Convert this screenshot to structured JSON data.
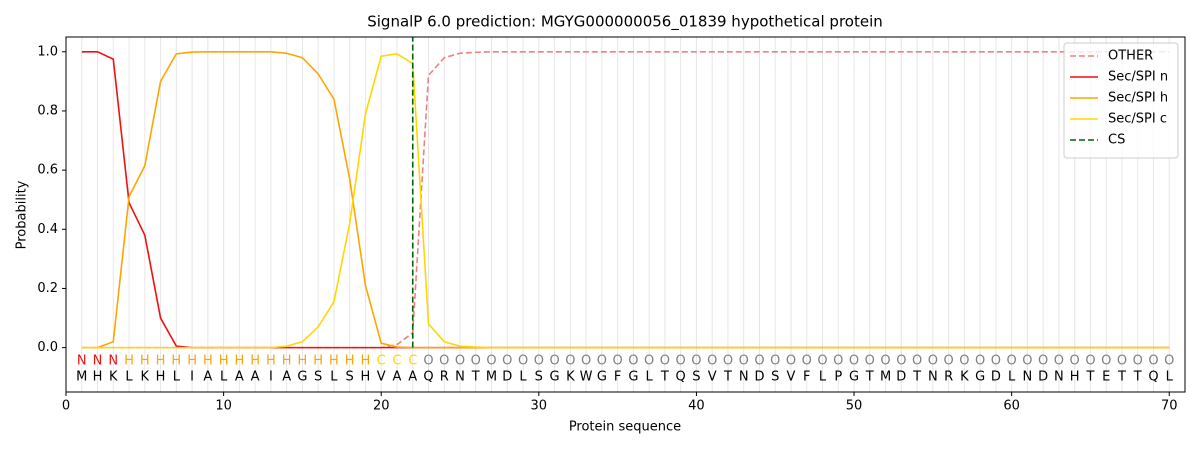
{
  "chart_data": {
    "type": "line",
    "title": "SignalP 6.0 prediction: MGYG000000056_01839 hypothetical protein",
    "x_label": "Protein sequence",
    "y_label": "Probability",
    "xlim": [
      0,
      71
    ],
    "ylim": [
      -0.15,
      1.05
    ],
    "xticks": [
      0,
      10,
      20,
      30,
      40,
      50,
      60,
      70
    ],
    "yticks": [
      {
        "value": 0,
        "label": "0.0"
      },
      {
        "value": 0.2,
        "label": "0.2"
      },
      {
        "value": 0.4,
        "label": "0.4"
      },
      {
        "value": 0.6,
        "label": "0.6"
      },
      {
        "value": 0.8,
        "label": "0.8"
      },
      {
        "value": 1,
        "label": "1.0"
      }
    ],
    "legend": "upper right",
    "x": [
      1,
      2,
      3,
      4,
      5,
      6,
      7,
      8,
      9,
      10,
      11,
      12,
      13,
      14,
      15,
      16,
      17,
      18,
      19,
      20,
      21,
      22,
      23,
      24,
      25,
      26,
      27,
      28,
      29,
      30,
      31,
      32,
      33,
      34,
      35,
      36,
      37,
      38,
      39,
      40,
      41,
      42,
      43,
      44,
      45,
      46,
      47,
      48,
      49,
      50,
      51,
      52,
      53,
      54,
      55,
      56,
      57,
      58,
      59,
      60,
      61,
      62,
      63,
      64,
      65,
      66,
      67,
      68,
      69,
      70
    ],
    "series": [
      {
        "name": "OTHER",
        "color": "#f08080",
        "dash": true,
        "values": [
          0,
          0,
          0,
          0,
          0,
          0,
          0,
          0,
          0,
          0,
          0,
          0,
          0,
          0,
          0,
          0,
          0,
          0,
          0,
          0,
          0.01,
          0.05,
          0.92,
          0.98,
          0.995,
          0.998,
          1,
          1,
          1,
          1,
          1,
          1,
          1,
          1,
          1,
          1,
          1,
          1,
          1,
          1,
          1,
          1,
          1,
          1,
          1,
          1,
          1,
          1,
          1,
          1,
          1,
          1,
          1,
          1,
          1,
          1,
          1,
          1,
          1,
          1,
          1,
          1,
          1,
          1,
          1,
          1,
          1,
          1,
          1,
          1
        ]
      },
      {
        "name": "Sec/SPI n",
        "color": "#ee1111",
        "values": [
          1,
          1,
          0.975,
          0.49,
          0.38,
          0.1,
          0.005,
          0,
          0,
          0,
          0,
          0,
          0,
          0,
          0,
          0,
          0,
          0,
          0,
          0,
          0,
          0,
          0,
          0,
          0,
          0,
          0,
          0,
          0,
          0,
          0,
          0,
          0,
          0,
          0,
          0,
          0,
          0,
          0,
          0,
          0,
          0,
          0,
          0,
          0,
          0,
          0,
          0,
          0,
          0,
          0,
          0,
          0,
          0,
          0,
          0,
          0,
          0,
          0,
          0,
          0,
          0,
          0,
          0,
          0,
          0,
          0,
          0,
          0,
          0
        ]
      },
      {
        "name": "Sec/SPI h",
        "color": "#ffa500",
        "values": [
          0,
          0,
          0.02,
          0.51,
          0.615,
          0.9,
          0.993,
          0.999,
          1,
          1,
          1,
          1,
          1,
          0.995,
          0.98,
          0.925,
          0.84,
          0.57,
          0.21,
          0.015,
          0.002,
          0,
          0,
          0,
          0,
          0,
          0,
          0,
          0,
          0,
          0,
          0,
          0,
          0,
          0,
          0,
          0,
          0,
          0,
          0,
          0,
          0,
          0,
          0,
          0,
          0,
          0,
          0,
          0,
          0,
          0,
          0,
          0,
          0,
          0,
          0,
          0,
          0,
          0,
          0,
          0,
          0,
          0,
          0,
          0,
          0,
          0,
          0,
          0,
          0
        ]
      },
      {
        "name": "Sec/SPI c",
        "color": "#ffd700",
        "values": [
          0,
          0,
          0,
          0,
          0,
          0,
          0,
          0,
          0,
          0,
          0,
          0,
          0,
          0.005,
          0.02,
          0.07,
          0.155,
          0.42,
          0.79,
          0.985,
          0.993,
          0.96,
          0.08,
          0.02,
          0.005,
          0.002,
          0,
          0,
          0,
          0,
          0,
          0,
          0,
          0,
          0,
          0,
          0,
          0,
          0,
          0,
          0,
          0,
          0,
          0,
          0,
          0,
          0,
          0,
          0,
          0,
          0,
          0,
          0,
          0,
          0,
          0,
          0,
          0,
          0,
          0,
          0,
          0,
          0,
          0,
          0,
          0,
          0,
          0,
          0,
          0
        ]
      }
    ],
    "cs": {
      "name": "CS",
      "x": 22,
      "color": "#006400"
    },
    "region_labels": [
      "N",
      "N",
      "N",
      "H",
      "H",
      "H",
      "H",
      "H",
      "H",
      "H",
      "H",
      "H",
      "H",
      "H",
      "H",
      "H",
      "H",
      "H",
      "H",
      "C",
      "C",
      "C",
      "O",
      "O",
      "O",
      "O",
      "O",
      "O",
      "O",
      "O",
      "O",
      "O",
      "O",
      "O",
      "O",
      "O",
      "O",
      "O",
      "O",
      "O",
      "O",
      "O",
      "O",
      "O",
      "O",
      "O",
      "O",
      "O",
      "O",
      "O",
      "O",
      "O",
      "O",
      "O",
      "O",
      "O",
      "O",
      "O",
      "O",
      "O",
      "O",
      "O",
      "O",
      "O",
      "O",
      "O",
      "O",
      "O",
      "O",
      "O"
    ],
    "region_colors": {
      "N": "#ee1111",
      "H": "#ffa500",
      "C": "#ffd700",
      "O": "#808080"
    },
    "sequence": [
      "M",
      "H",
      "K",
      "L",
      "K",
      "H",
      "L",
      "I",
      "A",
      "L",
      "A",
      "A",
      "I",
      "A",
      "G",
      "S",
      "L",
      "S",
      "H",
      "V",
      "A",
      "A",
      "Q",
      "R",
      "N",
      "T",
      "M",
      "D",
      "L",
      "S",
      "G",
      "K",
      "W",
      "G",
      "F",
      "G",
      "L",
      "T",
      "Q",
      "S",
      "V",
      "T",
      "N",
      "D",
      "S",
      "V",
      "F",
      "L",
      "P",
      "G",
      "T",
      "M",
      "D",
      "T",
      "N",
      "R",
      "K",
      "G",
      "D",
      "L",
      "N",
      "D",
      "N",
      "H",
      "T",
      "E",
      "T",
      "T",
      "Q",
      "L"
    ]
  }
}
